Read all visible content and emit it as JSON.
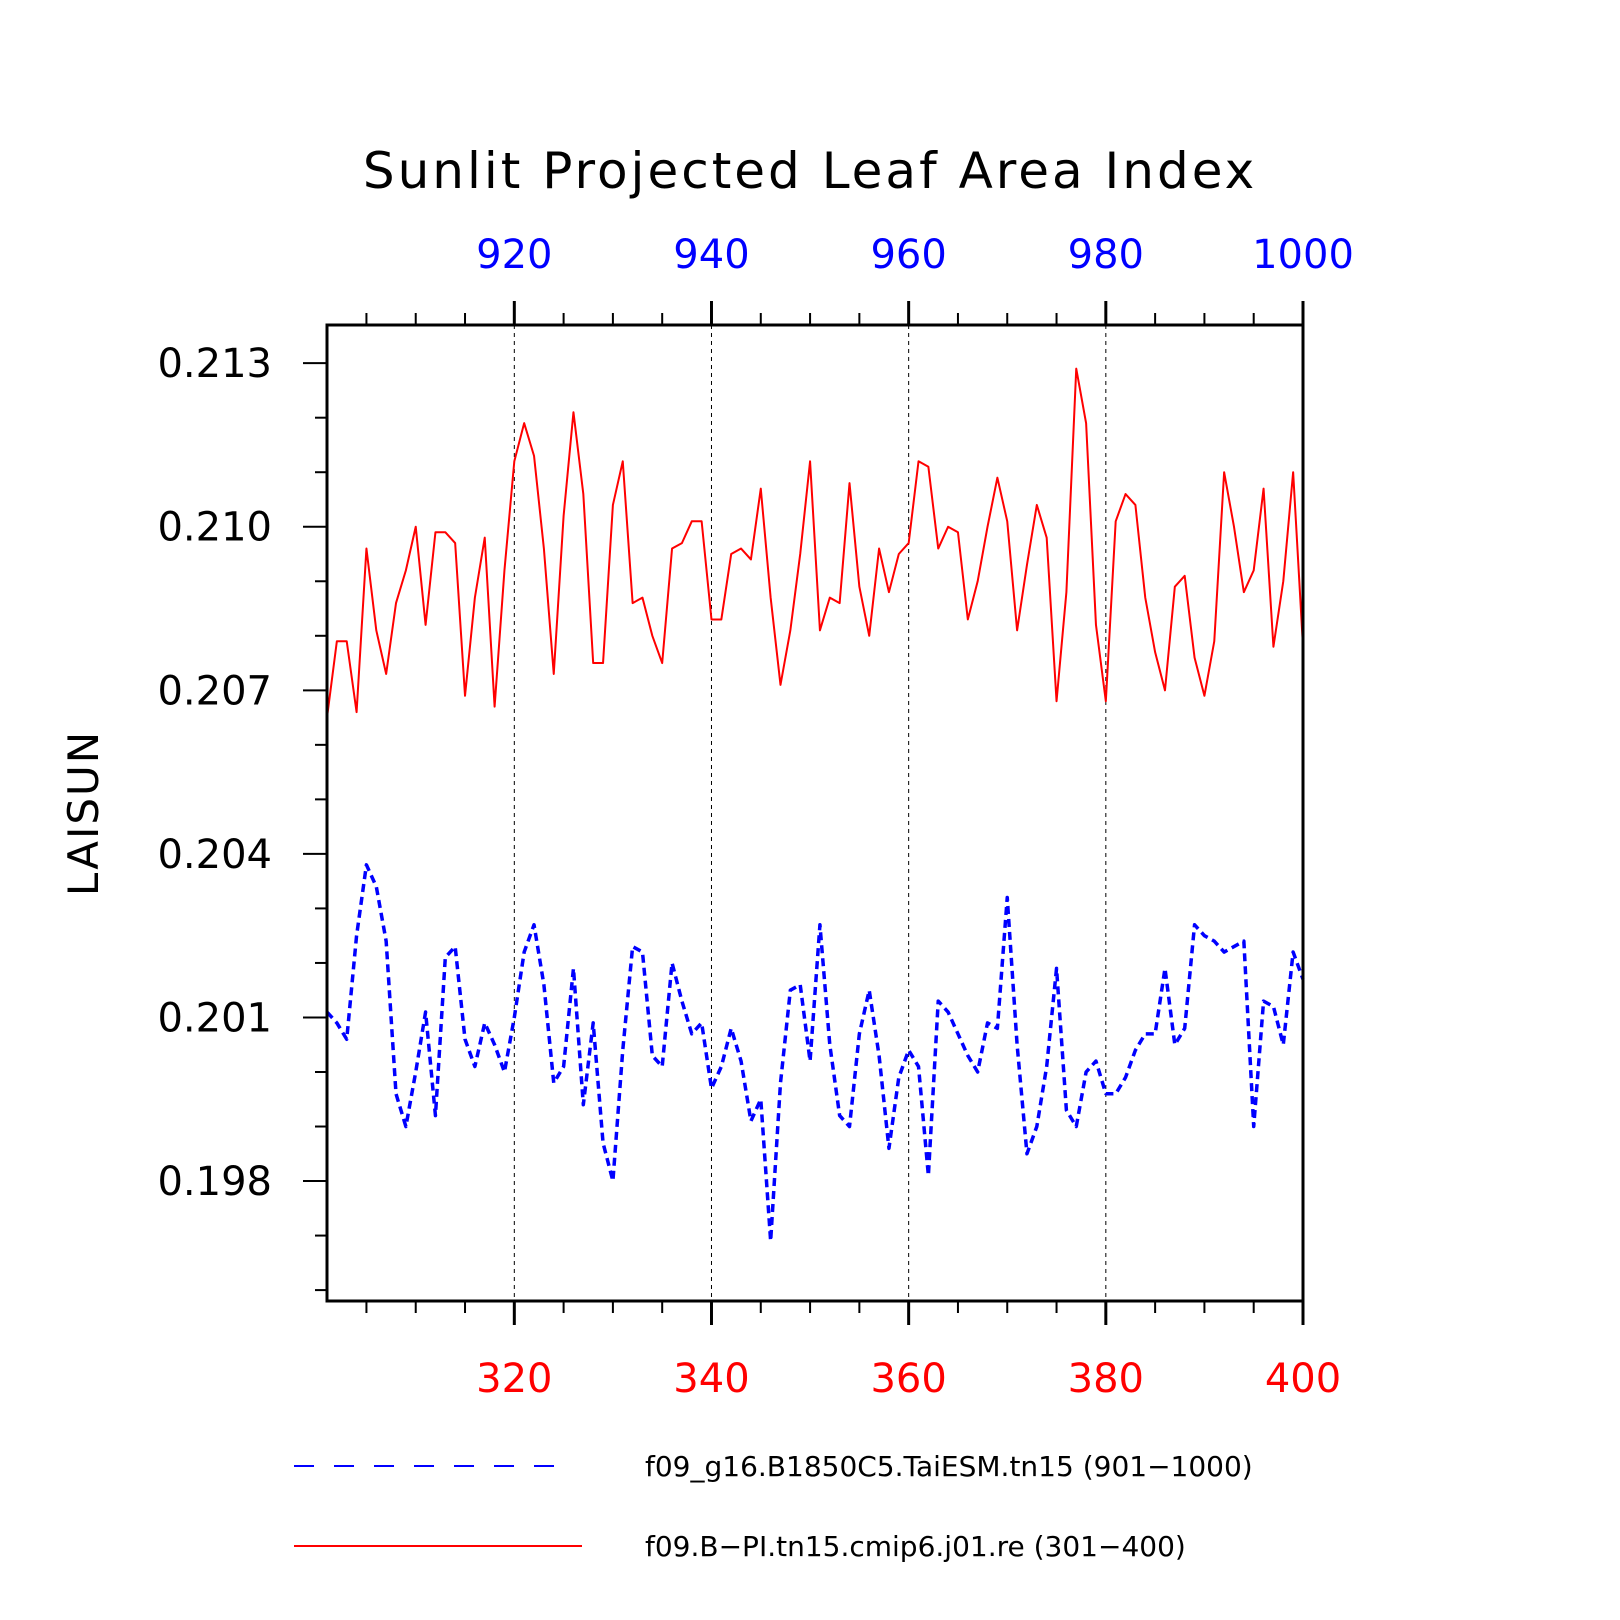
{
  "chart_data": {
    "type": "line",
    "title": "Sunlit Projected Leaf Area Index",
    "ylabel": "LAISUN",
    "ylim": [
      0.1958,
      0.2137
    ],
    "yticks": [
      0.198,
      0.201,
      0.204,
      0.207,
      0.21,
      0.213
    ],
    "ytick_labels": [
      "0.198",
      "0.201",
      "0.204",
      "0.207",
      "0.210",
      "0.213"
    ],
    "x_bottom": {
      "range": [
        301,
        400
      ],
      "ticks": [
        320,
        340,
        360,
        380,
        400
      ],
      "tick_labels": [
        "320",
        "340",
        "360",
        "380",
        "400"
      ],
      "color": "#ff0000"
    },
    "x_top": {
      "range": [
        901,
        1000
      ],
      "ticks": [
        920,
        940,
        960,
        980,
        1000
      ],
      "tick_labels": [
        "920",
        "940",
        "960",
        "980",
        "1000"
      ],
      "color": "#0000ff"
    },
    "grid": "vertical dashed at major x ticks",
    "legend_position": "bottom",
    "series": [
      {
        "name": "f09_g16.B1850C5.TaiESM.tn15 (901-1000)",
        "axis": "top",
        "color": "#0000ff",
        "style": "dashed",
        "x_start": 901,
        "values": [
          0.2011,
          0.2009,
          0.2006,
          0.2025,
          0.2038,
          0.2034,
          0.2024,
          0.1996,
          0.199,
          0.2,
          0.2011,
          0.1992,
          0.2021,
          0.2023,
          0.2006,
          0.2001,
          0.2009,
          0.2005,
          0.2,
          0.201,
          0.2022,
          0.2027,
          0.2016,
          0.1998,
          0.2001,
          0.2019,
          0.1994,
          0.2009,
          0.1987,
          0.198,
          0.2004,
          0.2023,
          0.2022,
          0.2003,
          0.2001,
          0.202,
          0.2013,
          0.2007,
          0.2009,
          0.1997,
          0.2001,
          0.2008,
          0.2002,
          0.1991,
          0.1995,
          0.1969,
          0.1998,
          0.2015,
          0.2016,
          0.2002,
          0.2027,
          0.2005,
          0.1992,
          0.199,
          0.2007,
          0.2015,
          0.2003,
          0.1986,
          0.1999,
          0.2004,
          0.2001,
          0.1981,
          0.2013,
          0.2011,
          0.2007,
          0.2003,
          0.2,
          0.2009,
          0.2008,
          0.2032,
          0.2005,
          0.1985,
          0.199,
          0.2001,
          0.2019,
          0.1993,
          0.199,
          0.2,
          0.2002,
          0.1996,
          0.1996,
          0.1999,
          0.2004,
          0.2007,
          0.2007,
          0.2019,
          0.2005,
          0.2008,
          0.2027,
          0.2025,
          0.2024,
          0.2022,
          0.2023,
          0.2024,
          0.199,
          0.2013,
          0.2012,
          0.2005,
          0.2022,
          0.2017
        ]
      },
      {
        "name": "f09.B-PI.tn15.cmip6.j01.re (301-400)",
        "axis": "bottom",
        "color": "#ff0000",
        "style": "solid",
        "x_start": 301,
        "values": [
          0.2065,
          0.2079,
          0.2079,
          0.2066,
          0.2096,
          0.2081,
          0.2073,
          0.2086,
          0.2092,
          0.21,
          0.2082,
          0.2099,
          0.2099,
          0.2097,
          0.2069,
          0.2087,
          0.2098,
          0.2067,
          0.2092,
          0.2112,
          0.2119,
          0.2113,
          0.2096,
          0.2073,
          0.2102,
          0.2121,
          0.2106,
          0.2075,
          0.2075,
          0.2104,
          0.2112,
          0.2086,
          0.2087,
          0.208,
          0.2075,
          0.2096,
          0.2097,
          0.2101,
          0.2101,
          0.2083,
          0.2083,
          0.2095,
          0.2096,
          0.2094,
          0.2107,
          0.2087,
          0.2071,
          0.2081,
          0.2095,
          0.2112,
          0.2081,
          0.2087,
          0.2086,
          0.2108,
          0.2089,
          0.208,
          0.2096,
          0.2088,
          0.2095,
          0.2097,
          0.2112,
          0.2111,
          0.2096,
          0.21,
          0.2099,
          0.2083,
          0.209,
          0.21,
          0.2109,
          0.2101,
          0.2081,
          0.2093,
          0.2104,
          0.2098,
          0.2068,
          0.2088,
          0.2129,
          0.2119,
          0.2082,
          0.2068,
          0.2101,
          0.2106,
          0.2104,
          0.2087,
          0.2077,
          0.207,
          0.2089,
          0.2091,
          0.2076,
          0.2069,
          0.2079,
          0.211,
          0.21,
          0.2088,
          0.2092,
          0.2107,
          0.2078,
          0.209,
          0.211,
          0.2078
        ]
      }
    ]
  },
  "legend": {
    "items": [
      {
        "label": "f09_g16.B1850C5.TaiESM.tn15 (901−1000)",
        "color": "#0000ff",
        "style": "dashed"
      },
      {
        "label": "f09.B−PI.tn15.cmip6.j01.re (301−400)",
        "color": "#ff0000",
        "style": "solid"
      }
    ]
  }
}
